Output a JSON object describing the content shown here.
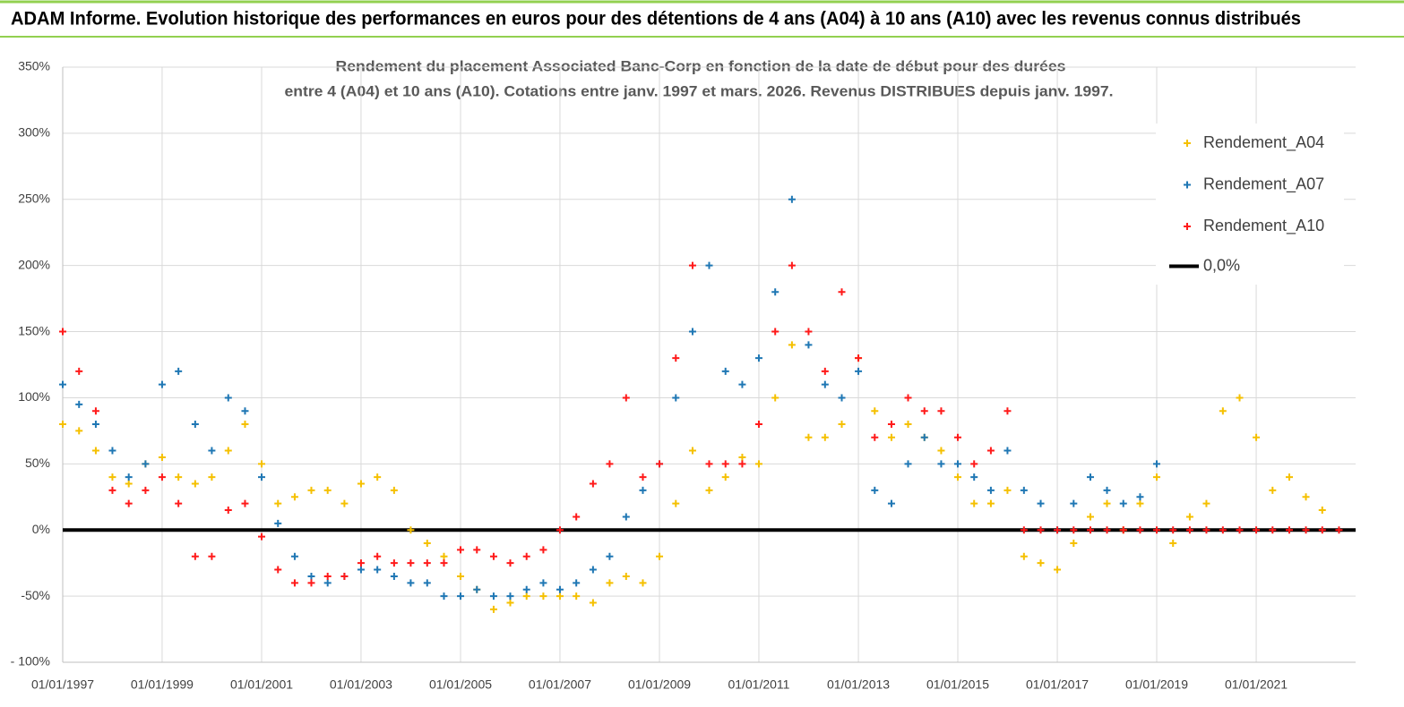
{
  "header": {
    "title": "ADAM Informe. Evolution historique des performances en euros pour des détentions de 4 ans (A04) à 10 ans (A10) avec les revenus connus distribués"
  },
  "chart_data": {
    "type": "scatter",
    "title_lines": [
      "Rendement du placement Associated Banc-Corp en fonction de la date de début pour des durées",
      "entre 4 (A04) et 10 ans (A10).  Cotations entre janv. 1997 et mars. 2026. Revenus DISTRIBUES depuis janv. 1997."
    ],
    "x": [
      "1997-01-01",
      "1997-05-01",
      "1997-09-01",
      "1998-01-01",
      "1998-05-01",
      "1998-09-01",
      "1999-01-01",
      "1999-05-01",
      "1999-09-01",
      "2000-01-01",
      "2000-05-01",
      "2000-09-01",
      "2001-01-01",
      "2001-05-01",
      "2001-09-01",
      "2002-01-01",
      "2002-05-01",
      "2002-09-01",
      "2003-01-01",
      "2003-05-01",
      "2003-09-01",
      "2004-01-01",
      "2004-05-01",
      "2004-09-01",
      "2005-01-01",
      "2005-05-01",
      "2005-09-01",
      "2006-01-01",
      "2006-05-01",
      "2006-09-01",
      "2007-01-01",
      "2007-05-01",
      "2007-09-01",
      "2008-01-01",
      "2008-05-01",
      "2008-09-01",
      "2009-01-01",
      "2009-05-01",
      "2009-09-01",
      "2010-01-01",
      "2010-05-01",
      "2010-09-01",
      "2011-01-01",
      "2011-05-01",
      "2011-09-01",
      "2012-01-01",
      "2012-05-01",
      "2012-09-01",
      "2013-01-01",
      "2013-05-01",
      "2013-09-01",
      "2014-01-01",
      "2014-05-01",
      "2014-09-01",
      "2015-01-01",
      "2015-05-01",
      "2015-09-01",
      "2016-01-01",
      "2016-05-01",
      "2016-09-01",
      "2017-01-01",
      "2017-05-01",
      "2017-09-01",
      "2018-01-01",
      "2018-05-01",
      "2018-09-01",
      "2019-01-01",
      "2019-05-01",
      "2019-09-01",
      "2020-01-01",
      "2020-05-01",
      "2020-09-01",
      "2021-01-01",
      "2021-05-01",
      "2021-09-01",
      "2022-01-01",
      "2022-05-01",
      "2022-09-01"
    ],
    "series": [
      {
        "name": "Rendement_A04",
        "color": "#f5c000",
        "values": [
          80,
          75,
          60,
          40,
          35,
          50,
          55,
          40,
          35,
          40,
          60,
          80,
          50,
          20,
          25,
          30,
          30,
          20,
          35,
          40,
          30,
          0,
          -10,
          -20,
          -35,
          -45,
          -60,
          -55,
          -50,
          -50,
          -50,
          -50,
          -55,
          -40,
          -35,
          -40,
          -20,
          20,
          60,
          30,
          40,
          55,
          50,
          100,
          140,
          70,
          70,
          80,
          130,
          90,
          70,
          80,
          70,
          60,
          40,
          20,
          20,
          30,
          -20,
          -25,
          -30,
          -10,
          10,
          20,
          0,
          20,
          40,
          -10,
          10,
          20,
          90,
          100,
          70,
          30,
          40,
          25,
          15,
          null
        ]
      },
      {
        "name": "Rendement_A07",
        "color": "#1f77b4",
        "values": [
          110,
          95,
          80,
          60,
          40,
          50,
          110,
          120,
          80,
          60,
          100,
          90,
          40,
          5,
          -20,
          -35,
          -40,
          -35,
          -30,
          -30,
          -35,
          -40,
          -40,
          -50,
          -50,
          -45,
          -50,
          -50,
          -45,
          -40,
          -45,
          -40,
          -30,
          -20,
          10,
          30,
          50,
          100,
          150,
          200,
          120,
          110,
          130,
          180,
          250,
          140,
          110,
          100,
          120,
          30,
          20,
          50,
          70,
          50,
          50,
          40,
          30,
          60,
          30,
          20,
          0,
          20,
          40,
          30,
          20,
          25,
          50,
          null,
          null,
          null,
          null,
          null,
          null,
          null,
          null,
          null,
          null,
          null
        ]
      },
      {
        "name": "Rendement_A10",
        "color": "#ff1a1a",
        "values": [
          150,
          120,
          90,
          30,
          20,
          30,
          40,
          20,
          -20,
          -20,
          15,
          20,
          -5,
          -30,
          -40,
          -40,
          -35,
          -35,
          -25,
          -20,
          -25,
          -25,
          -25,
          -25,
          -15,
          -15,
          -20,
          -25,
          -20,
          -15,
          0,
          10,
          35,
          50,
          100,
          40,
          50,
          130,
          200,
          50,
          50,
          50,
          80,
          150,
          200,
          150,
          120,
          180,
          130,
          70,
          80,
          100,
          90,
          90,
          70,
          50,
          60,
          90,
          0,
          0,
          0,
          0,
          0,
          0,
          0,
          0,
          0,
          0,
          0,
          0,
          0,
          0,
          0,
          0,
          0,
          0,
          0,
          0
        ]
      }
    ],
    "reference_line": {
      "name": "0,0%",
      "value": 0,
      "color": "#000000"
    },
    "xlim": [
      "1997-01-01",
      "2023-01-01"
    ],
    "xticks": [
      {
        "value": "1997-01-01",
        "label": "01/01/1997"
      },
      {
        "value": "1999-01-01",
        "label": "01/01/1999"
      },
      {
        "value": "2001-01-01",
        "label": "01/01/2001"
      },
      {
        "value": "2003-01-01",
        "label": "01/01/2003"
      },
      {
        "value": "2005-01-01",
        "label": "01/01/2005"
      },
      {
        "value": "2007-01-01",
        "label": "01/01/2007"
      },
      {
        "value": "2009-01-01",
        "label": "01/01/2009"
      },
      {
        "value": "2011-01-01",
        "label": "01/01/2011"
      },
      {
        "value": "2013-01-01",
        "label": "01/01/2013"
      },
      {
        "value": "2015-01-01",
        "label": "01/01/2015"
      },
      {
        "value": "2017-01-01",
        "label": "01/01/2017"
      },
      {
        "value": "2019-01-01",
        "label": "01/01/2019"
      },
      {
        "value": "2021-01-01",
        "label": "01/01/2021"
      }
    ],
    "ylim": [
      -100,
      350
    ],
    "yticks": [
      {
        "value": -100,
        "label": "- 100%"
      },
      {
        "value": -50,
        "label": "-50%"
      },
      {
        "value": 0,
        "label": "0%"
      },
      {
        "value": 50,
        "label": "50%"
      },
      {
        "value": 100,
        "label": "100%"
      },
      {
        "value": 150,
        "label": "150%"
      },
      {
        "value": 200,
        "label": "200%"
      },
      {
        "value": 250,
        "label": "250%"
      },
      {
        "value": 300,
        "label": "300%"
      },
      {
        "value": 350,
        "label": "350%"
      }
    ],
    "grid": true,
    "legend_position": "right"
  }
}
